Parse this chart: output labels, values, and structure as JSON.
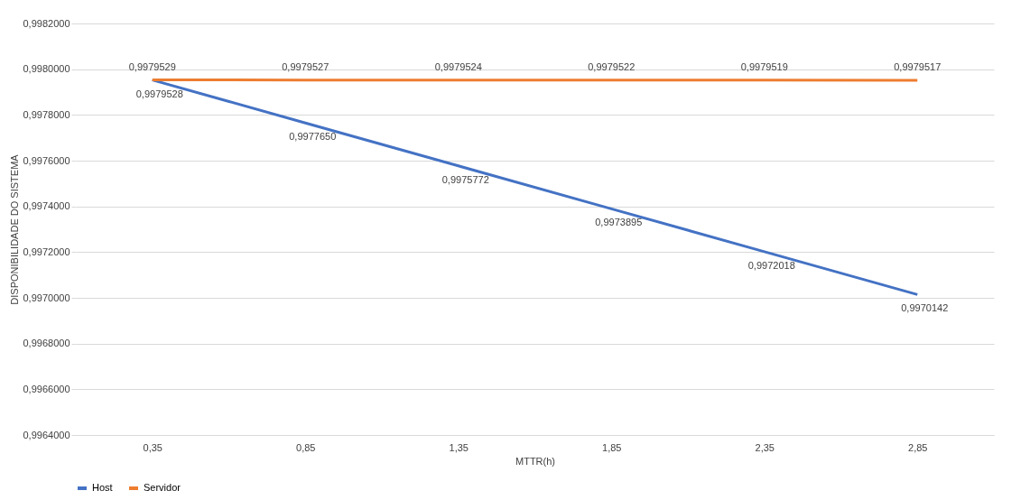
{
  "chart_data": {
    "type": "line",
    "xlabel": "MTTR(h)",
    "ylabel": "DISPONIBILIDADE DO SISTEMA",
    "categories": [
      "0,35",
      "0,85",
      "1,35",
      "1,85",
      "2,35",
      "2,85"
    ],
    "series": [
      {
        "name": "Host",
        "color": "#4472c4",
        "values": [
          0.9979528,
          0.997765,
          0.9975772,
          0.9973895,
          0.9972018,
          0.9970142
        ],
        "value_labels": [
          "0,9979528",
          "0,9977650",
          "0,9975772",
          "0,9973895",
          "0,9972018",
          "0,9970142"
        ]
      },
      {
        "name": "Servidor",
        "color": "#ed7d31",
        "values": [
          0.9979529,
          0.9979527,
          0.9979524,
          0.9979522,
          0.9979519,
          0.9979517
        ],
        "value_labels": [
          "0,9979529",
          "0,9979527",
          "0,9979524",
          "0,9979522",
          "0,9979519",
          "0,9979517"
        ]
      }
    ],
    "ylim": [
      0.9964,
      0.9982
    ],
    "yticks": [
      {
        "value": 0.9964,
        "label": "0,9964000"
      },
      {
        "value": 0.9966,
        "label": "0,9966000"
      },
      {
        "value": 0.9968,
        "label": "0,9968000"
      },
      {
        "value": 0.997,
        "label": "0,9970000"
      },
      {
        "value": 0.9972,
        "label": "0,9972000"
      },
      {
        "value": 0.9974,
        "label": "0,9974000"
      },
      {
        "value": 0.9976,
        "label": "0,9976000"
      },
      {
        "value": 0.9978,
        "label": "0,9978000"
      },
      {
        "value": 0.998,
        "label": "0,9980000"
      },
      {
        "value": 0.9982,
        "label": "0,9982000"
      }
    ],
    "grid": "y",
    "legend": "bottom",
    "marker": "none",
    "line_style": "solid"
  }
}
